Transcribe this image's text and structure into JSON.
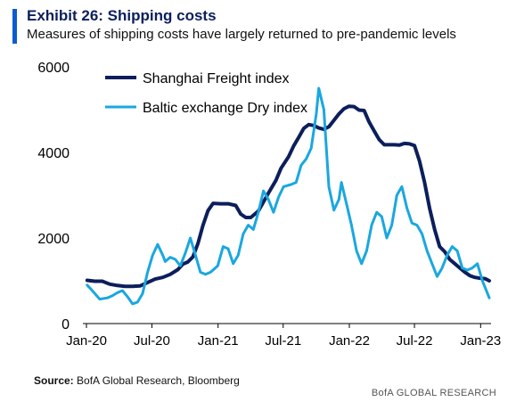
{
  "header": {
    "title": "Exhibit 26: Shipping costs",
    "subtitle": "Measures of shipping costs have largely returned to pre-pandemic levels"
  },
  "footer": {
    "source_label": "Source:",
    "source_text": "BofA Global Research, Bloomberg",
    "brand": "BofA GLOBAL RESEARCH"
  },
  "colors": {
    "accent": "#0b5bd1",
    "title": "#0b1f5c",
    "sfi": "#0c1e5b",
    "bdi": "#1aa7e0"
  },
  "chart_data": {
    "type": "line",
    "title": "Exhibit 26: Shipping costs",
    "subtitle": "Measures of shipping costs have largely returned to pre-pandemic levels",
    "xlabel": "",
    "ylabel": "",
    "ylim": [
      0,
      6000
    ],
    "yticks": [
      "0",
      "2000",
      "4000",
      "6000"
    ],
    "xlim": [
      "2020-01-01",
      "2023-01-25"
    ],
    "xticks": [
      {
        "label": "Jan-20",
        "date": "2020-01-01"
      },
      {
        "label": "Jul-20",
        "date": "2020-07-01"
      },
      {
        "label": "Jan-21",
        "date": "2021-01-01"
      },
      {
        "label": "Jul-21",
        "date": "2021-07-01"
      },
      {
        "label": "Jan-22",
        "date": "2022-01-01"
      },
      {
        "label": "Jul-22",
        "date": "2022-07-01"
      },
      {
        "label": "Jan-23",
        "date": "2023-01-01"
      }
    ],
    "grid": false,
    "legend_position": "top-left",
    "series": [
      {
        "name": "Shanghai Freight index",
        "color": "#0c1e5b",
        "points": [
          [
            "2020-01-03",
            1010
          ],
          [
            "2020-01-24",
            990
          ],
          [
            "2020-02-14",
            990
          ],
          [
            "2020-03-06",
            920
          ],
          [
            "2020-03-27",
            890
          ],
          [
            "2020-04-17",
            870
          ],
          [
            "2020-05-08",
            870
          ],
          [
            "2020-05-29",
            880
          ],
          [
            "2020-06-19",
            960
          ],
          [
            "2020-07-10",
            1040
          ],
          [
            "2020-07-31",
            1080
          ],
          [
            "2020-08-21",
            1150
          ],
          [
            "2020-09-11",
            1260
          ],
          [
            "2020-09-25",
            1390
          ],
          [
            "2020-10-09",
            1440
          ],
          [
            "2020-10-23",
            1560
          ],
          [
            "2020-11-06",
            1870
          ],
          [
            "2020-11-20",
            2300
          ],
          [
            "2020-12-04",
            2640
          ],
          [
            "2020-12-18",
            2810
          ],
          [
            "2021-01-08",
            2800
          ],
          [
            "2021-01-29",
            2800
          ],
          [
            "2021-02-19",
            2760
          ],
          [
            "2021-03-05",
            2560
          ],
          [
            "2021-03-19",
            2480
          ],
          [
            "2021-04-02",
            2480
          ],
          [
            "2021-04-23",
            2630
          ],
          [
            "2021-05-07",
            2840
          ],
          [
            "2021-05-21",
            3050
          ],
          [
            "2021-06-11",
            3350
          ],
          [
            "2021-06-25",
            3630
          ],
          [
            "2021-07-16",
            3900
          ],
          [
            "2021-07-30",
            4150
          ],
          [
            "2021-08-13",
            4350
          ],
          [
            "2021-08-27",
            4560
          ],
          [
            "2021-09-10",
            4650
          ],
          [
            "2021-09-24",
            4630
          ],
          [
            "2021-10-08",
            4570
          ],
          [
            "2021-10-22",
            4540
          ],
          [
            "2021-11-05",
            4600
          ],
          [
            "2021-11-19",
            4750
          ],
          [
            "2021-12-03",
            4900
          ],
          [
            "2021-12-17",
            5020
          ],
          [
            "2021-12-31",
            5080
          ],
          [
            "2022-01-14",
            5070
          ],
          [
            "2022-01-28",
            4990
          ],
          [
            "2022-02-11",
            4980
          ],
          [
            "2022-02-25",
            4710
          ],
          [
            "2022-03-11",
            4500
          ],
          [
            "2022-03-25",
            4300
          ],
          [
            "2022-04-08",
            4180
          ],
          [
            "2022-04-22",
            4180
          ],
          [
            "2022-05-06",
            4180
          ],
          [
            "2022-05-20",
            4170
          ],
          [
            "2022-06-03",
            4210
          ],
          [
            "2022-06-17",
            4200
          ],
          [
            "2022-07-01",
            4160
          ],
          [
            "2022-07-15",
            3800
          ],
          [
            "2022-07-29",
            3300
          ],
          [
            "2022-08-12",
            2700
          ],
          [
            "2022-08-26",
            2200
          ],
          [
            "2022-09-09",
            1800
          ],
          [
            "2022-09-23",
            1680
          ],
          [
            "2022-10-07",
            1500
          ],
          [
            "2022-10-21",
            1400
          ],
          [
            "2022-11-04",
            1300
          ],
          [
            "2022-11-18",
            1200
          ],
          [
            "2022-12-02",
            1120
          ],
          [
            "2022-12-16",
            1080
          ],
          [
            "2022-12-30",
            1060
          ],
          [
            "2023-01-13",
            1050
          ],
          [
            "2023-01-25",
            1000
          ]
        ]
      },
      {
        "name": "Baltic exchange Dry index",
        "color": "#1aa7e0",
        "points": [
          [
            "2020-01-03",
            900
          ],
          [
            "2020-01-17",
            770
          ],
          [
            "2020-02-07",
            570
          ],
          [
            "2020-02-28",
            600
          ],
          [
            "2020-03-13",
            650
          ],
          [
            "2020-03-27",
            720
          ],
          [
            "2020-04-10",
            770
          ],
          [
            "2020-04-24",
            630
          ],
          [
            "2020-05-08",
            460
          ],
          [
            "2020-05-22",
            500
          ],
          [
            "2020-06-05",
            700
          ],
          [
            "2020-06-19",
            1200
          ],
          [
            "2020-07-03",
            1600
          ],
          [
            "2020-07-17",
            1850
          ],
          [
            "2020-07-31",
            1600
          ],
          [
            "2020-08-07",
            1450
          ],
          [
            "2020-08-21",
            1550
          ],
          [
            "2020-09-04",
            1500
          ],
          [
            "2020-09-18",
            1350
          ],
          [
            "2020-10-02",
            1650
          ],
          [
            "2020-10-16",
            2000
          ],
          [
            "2020-10-30",
            1600
          ],
          [
            "2020-11-13",
            1200
          ],
          [
            "2020-11-27",
            1150
          ],
          [
            "2020-12-11",
            1200
          ],
          [
            "2020-12-31",
            1350
          ],
          [
            "2021-01-15",
            1800
          ],
          [
            "2021-01-29",
            1750
          ],
          [
            "2021-02-12",
            1400
          ],
          [
            "2021-02-26",
            1600
          ],
          [
            "2021-03-12",
            2100
          ],
          [
            "2021-03-26",
            2300
          ],
          [
            "2021-04-09",
            2200
          ],
          [
            "2021-04-23",
            2600
          ],
          [
            "2021-05-07",
            3100
          ],
          [
            "2021-05-21",
            2900
          ],
          [
            "2021-06-04",
            2600
          ],
          [
            "2021-06-18",
            2950
          ],
          [
            "2021-07-02",
            3200
          ],
          [
            "2021-07-23",
            3250
          ],
          [
            "2021-08-06",
            3300
          ],
          [
            "2021-08-20",
            3700
          ],
          [
            "2021-09-03",
            3850
          ],
          [
            "2021-09-17",
            4100
          ],
          [
            "2021-10-01",
            4900
          ],
          [
            "2021-10-08",
            5500
          ],
          [
            "2021-10-22",
            5000
          ],
          [
            "2021-11-05",
            3200
          ],
          [
            "2021-11-19",
            2650
          ],
          [
            "2021-12-03",
            2900
          ],
          [
            "2021-12-10",
            3300
          ],
          [
            "2021-12-24",
            2800
          ],
          [
            "2022-01-07",
            2300
          ],
          [
            "2022-01-21",
            1700
          ],
          [
            "2022-02-04",
            1400
          ],
          [
            "2022-02-18",
            1700
          ],
          [
            "2022-03-04",
            2300
          ],
          [
            "2022-03-18",
            2600
          ],
          [
            "2022-04-01",
            2500
          ],
          [
            "2022-04-15",
            2000
          ],
          [
            "2022-04-29",
            2300
          ],
          [
            "2022-05-13",
            3000
          ],
          [
            "2022-05-27",
            3200
          ],
          [
            "2022-06-10",
            2700
          ],
          [
            "2022-06-24",
            2350
          ],
          [
            "2022-07-08",
            2300
          ],
          [
            "2022-07-22",
            2100
          ],
          [
            "2022-08-05",
            1700
          ],
          [
            "2022-08-19",
            1400
          ],
          [
            "2022-09-02",
            1100
          ],
          [
            "2022-09-16",
            1300
          ],
          [
            "2022-09-30",
            1600
          ],
          [
            "2022-10-14",
            1800
          ],
          [
            "2022-10-28",
            1700
          ],
          [
            "2022-11-11",
            1300
          ],
          [
            "2022-11-25",
            1250
          ],
          [
            "2022-12-09",
            1300
          ],
          [
            "2022-12-23",
            1400
          ],
          [
            "2023-01-06",
            1000
          ],
          [
            "2023-01-13",
            850
          ],
          [
            "2023-01-25",
            600
          ]
        ]
      }
    ]
  }
}
